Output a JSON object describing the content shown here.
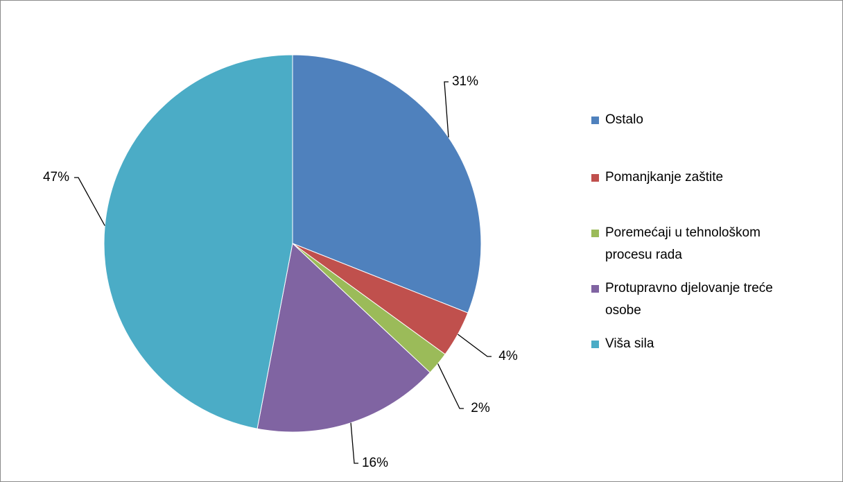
{
  "chart_data": {
    "type": "pie",
    "categories": [
      "Ostalo",
      "Pomanjkanje zaštite",
      "Poremećaji u tehnološkom procesu rada",
      "Protupravno djelovanje treće osobe",
      "Viša sila"
    ],
    "values": [
      31,
      4,
      2,
      16,
      47
    ],
    "value_labels": [
      "31%",
      "4%",
      "2%",
      "16%",
      "47%"
    ],
    "colors": [
      "#4f81bd",
      "#c0504d",
      "#9bbb59",
      "#8064a2",
      "#4bacc6"
    ],
    "legend": "right"
  }
}
